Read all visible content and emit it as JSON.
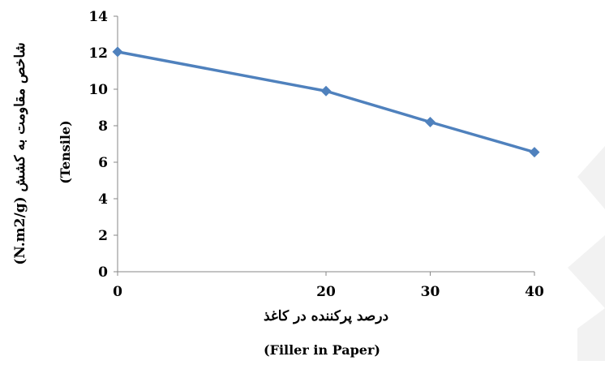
{
  "chart_data": {
    "type": "line",
    "title": "",
    "x": [
      0,
      20,
      30,
      40
    ],
    "x_ticks": [
      "0",
      "20",
      "30",
      "40"
    ],
    "y_ticks": [
      "0",
      "2",
      "4",
      "6",
      "8",
      "10",
      "12",
      "14"
    ],
    "ylim": [
      0,
      14
    ],
    "series": [
      {
        "values": [
          12.05,
          9.9,
          8.2,
          6.55
        ],
        "color": "#4F81BD",
        "marker": "diamond"
      }
    ],
    "xlabel": "درصد پرکننده در کاغذ",
    "xlabel_secondary": "(Filler in Paper)",
    "ylabel": "شاخص مقاومت به کشش (N.m2/g)",
    "ylabel_secondary": "(Tensile)",
    "grid": false,
    "legend": "none"
  },
  "background_shape_color": "#f2f2f2"
}
